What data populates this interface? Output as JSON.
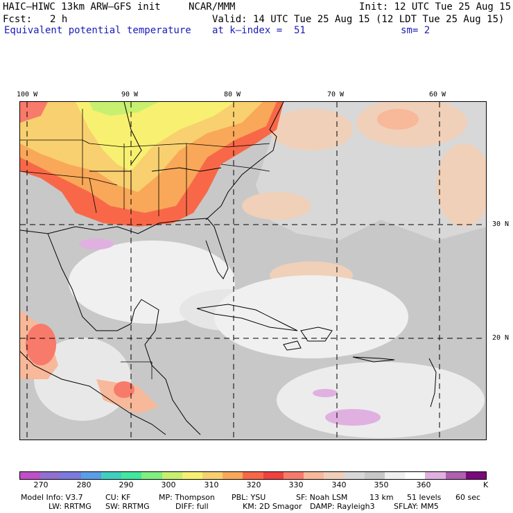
{
  "header": {
    "model": "HAIC–HIWC 13km ARW–GFS init",
    "org": "NCAR/MMM",
    "init": "Init: 12 UTC Tue 25 Aug 15",
    "fcst_label": "Fcst:",
    "fcst_value": "2 h",
    "valid": "Valid: 14 UTC Tue 25 Aug 15 (12 LDT Tue 25 Aug 15)",
    "field": "Equivalent potential temperature",
    "level": "at k–index =  51",
    "smooth": "sm= 2"
  },
  "map": {
    "lon_labels": [
      "100 W",
      "90 W",
      "80 W",
      "70 W",
      "60 W"
    ],
    "lat_labels": [
      "30 N",
      "20 N"
    ]
  },
  "colorbar": {
    "tick_labels": [
      "270",
      "280",
      "290",
      "300",
      "310",
      "320",
      "330",
      "340",
      "350",
      "360"
    ],
    "unit": "K",
    "colors": [
      "#c050c8",
      "#9070d0",
      "#7a7ae0",
      "#5a9ee8",
      "#40d0c0",
      "#40e8a0",
      "#80f080",
      "#c8f070",
      "#f8f070",
      "#f8d070",
      "#f8a858",
      "#f86848",
      "#f04040",
      "#f87a6a",
      "#f8b89a",
      "#f0d0b8",
      "#d8d8d8",
      "#c8c8c8",
      "#f0f0f0",
      "#ffffff",
      "#e0b0e0",
      "#b060b0",
      "#7a0a7a"
    ]
  },
  "footer": {
    "line1": [
      "Model Info: V3.7",
      "CU: KF",
      "MP: Thompson",
      "PBL: YSU",
      "SF: Noah LSM",
      "13 km",
      "51 levels",
      "60 sec"
    ],
    "line2": [
      "LW: RRTMG",
      "SW: RRTMG",
      "DIFF: full",
      "KM: 2D Smagor",
      "DAMP: Rayleigh3",
      "SFLAY: MM5"
    ]
  }
}
